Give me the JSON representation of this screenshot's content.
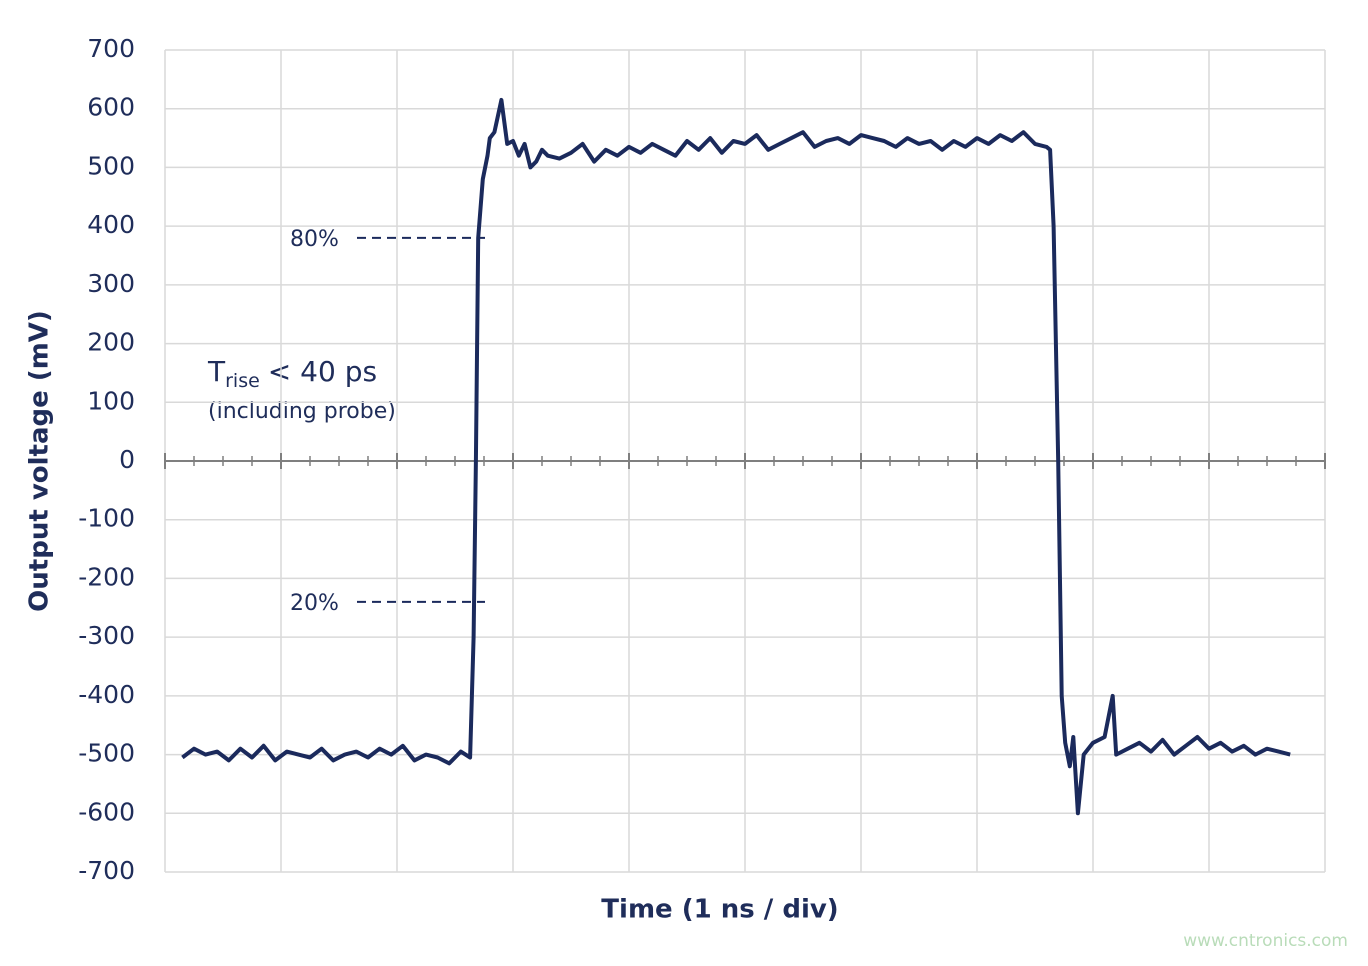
{
  "chart_data": {
    "type": "line",
    "x_label": "Time (1 ns / div)",
    "y_label": "Output voltage (mV)",
    "xlim": [
      0,
      10
    ],
    "xticks": [
      0,
      1,
      2,
      3,
      4,
      5,
      6,
      7,
      8,
      9,
      10
    ],
    "ylim": [
      -700,
      700
    ],
    "yticks": [
      -700,
      -600,
      -500,
      -400,
      -300,
      -200,
      -100,
      0,
      100,
      200,
      300,
      400,
      500,
      600,
      700
    ],
    "grid": true,
    "annotations": [
      {
        "text": "80%",
        "y": 380
      },
      {
        "text": "20%",
        "y": -240
      }
    ],
    "rise_note": {
      "symbol": "T",
      "subscript": "rise",
      "text": "< 40 ps",
      "note": "(including probe)"
    },
    "watermark": "www.cntronics.com",
    "series": [
      {
        "color": "#1b2a5c",
        "x": [
          0.15,
          0.25,
          0.35,
          0.45,
          0.55,
          0.65,
          0.75,
          0.85,
          0.95,
          1.05,
          1.15,
          1.25,
          1.35,
          1.45,
          1.55,
          1.65,
          1.75,
          1.85,
          1.95,
          2.05,
          2.15,
          2.25,
          2.35,
          2.45,
          2.55,
          2.63,
          2.66,
          2.68,
          2.7,
          2.74,
          2.78,
          2.8,
          2.84,
          2.9,
          2.95,
          3.0,
          3.05,
          3.1,
          3.15,
          3.2,
          3.25,
          3.3,
          3.4,
          3.5,
          3.6,
          3.7,
          3.8,
          3.9,
          4.0,
          4.1,
          4.2,
          4.3,
          4.4,
          4.5,
          4.6,
          4.7,
          4.8,
          4.9,
          5.0,
          5.1,
          5.2,
          5.3,
          5.4,
          5.5,
          5.6,
          5.7,
          5.8,
          5.9,
          6.0,
          6.1,
          6.2,
          6.3,
          6.4,
          6.5,
          6.6,
          6.7,
          6.8,
          6.9,
          7.0,
          7.1,
          7.2,
          7.3,
          7.4,
          7.5,
          7.6,
          7.63,
          7.66,
          7.7,
          7.73,
          7.76,
          7.8,
          7.83,
          7.87,
          7.92,
          8.0,
          8.1,
          8.17,
          8.2,
          8.3,
          8.4,
          8.5,
          8.6,
          8.7,
          8.8,
          8.9,
          9.0,
          9.1,
          9.2,
          9.3,
          9.4,
          9.5,
          9.6,
          9.7
        ],
        "values": [
          -505,
          -490,
          -500,
          -495,
          -510,
          -490,
          -505,
          -485,
          -510,
          -495,
          -500,
          -505,
          -490,
          -510,
          -500,
          -495,
          -505,
          -490,
          -500,
          -485,
          -510,
          -500,
          -505,
          -515,
          -495,
          -505,
          -300,
          0,
          380,
          480,
          520,
          550,
          560,
          615,
          540,
          545,
          520,
          540,
          500,
          510,
          530,
          520,
          515,
          525,
          540,
          510,
          530,
          520,
          535,
          525,
          540,
          530,
          520,
          545,
          530,
          550,
          525,
          545,
          540,
          555,
          530,
          540,
          550,
          560,
          535,
          545,
          550,
          540,
          555,
          550,
          545,
          535,
          550,
          540,
          545,
          530,
          545,
          535,
          550,
          540,
          555,
          545,
          560,
          540,
          535,
          530,
          400,
          0,
          -400,
          -480,
          -520,
          -470,
          -600,
          -500,
          -480,
          -470,
          -400,
          -500,
          -490,
          -480,
          -495,
          -475,
          -500,
          -485,
          -470,
          -490,
          -480,
          -495,
          -485,
          -500,
          -490,
          -495,
          -500
        ]
      }
    ]
  }
}
